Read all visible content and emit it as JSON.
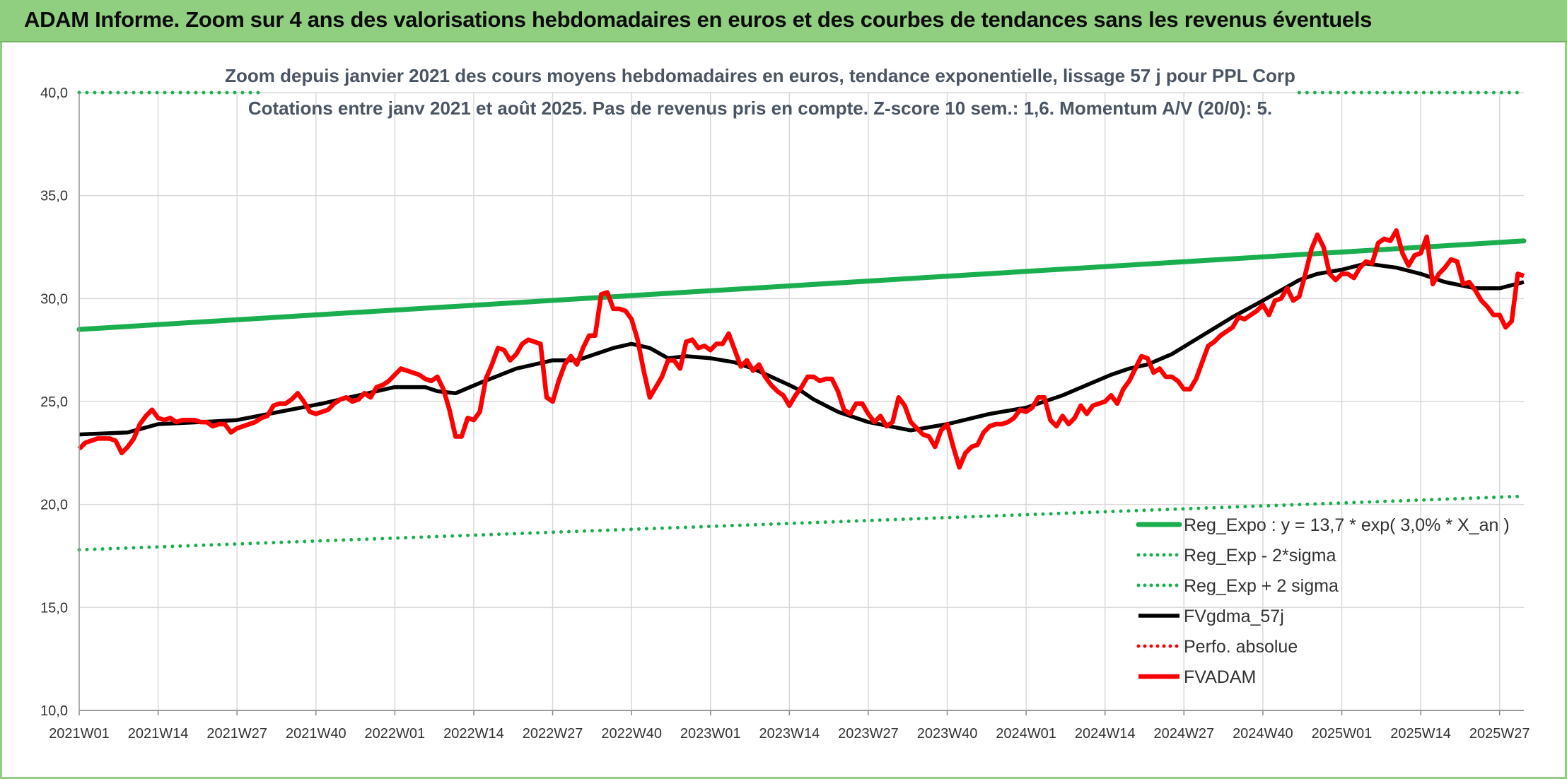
{
  "header": {
    "title": "ADAM Informe. Zoom sur 4 ans des valorisations hebdomadaires en euros et des courbes de tendances sans les revenus éventuels"
  },
  "colors": {
    "banner": "#8fcf7f",
    "green": "#1aae4f",
    "black": "#000000",
    "red": "#ff0000",
    "grid": "#d9d9d9"
  },
  "chart_data": {
    "type": "line",
    "title": "Zoom depuis janvier 2021 des cours moyens hebdomadaires en euros, tendance exponentielle, lissage 57 j pour PPL Corp",
    "subtitle": "Cotations entre janv 2021 et août 2025. Pas de revenus pris en compte. Z-score 10 sem.: 1,6. Momentum A/V (20/0): 5.",
    "xlabel": "",
    "ylabel": "",
    "ylim": [
      10,
      40
    ],
    "y_ticks": [
      "10,0",
      "15,0",
      "20,0",
      "25,0",
      "30,0",
      "35,0",
      "40,0"
    ],
    "x_ticks": [
      "2021W01",
      "2021W14",
      "2021W27",
      "2021W40",
      "2022W01",
      "2022W14",
      "2022W27",
      "2022W40",
      "2023W01",
      "2023W14",
      "2023W27",
      "2023W40",
      "2024W01",
      "2024W14",
      "2024W27",
      "2024W40",
      "2025W01",
      "2025W14",
      "2025W27"
    ],
    "x_range_weeks": [
      0,
      238
    ],
    "grid": true,
    "legend_position": "bottom-right",
    "series": [
      {
        "name": "Reg_Expo : y = 13,7 * exp( 3,0% *  X_an )",
        "style": "solid",
        "color": "#1aae4f",
        "x": [
          0,
          238
        ],
        "values": [
          28.5,
          32.8
        ]
      },
      {
        "name": "Reg_Exp - 2*sigma",
        "style": "dotted",
        "color": "#1aae4f",
        "x": [
          0,
          238
        ],
        "values": [
          17.8,
          20.4
        ]
      },
      {
        "name": "Reg_Exp + 2 sigma",
        "style": "dotted",
        "color": "#1aae4f",
        "x": [
          0,
          30,
          201,
          238
        ],
        "values": [
          40.0,
          40.0,
          40.0,
          40.0
        ],
        "gap": [
          30,
          201
        ]
      },
      {
        "name": "FVgdma_57j",
        "style": "solid",
        "color": "#000000",
        "x": [
          0,
          8,
          13,
          20,
          26,
          33,
          40,
          46,
          52,
          57,
          59,
          62,
          66,
          72,
          78,
          82,
          85,
          88,
          91,
          94,
          97,
          100,
          104,
          108,
          111,
          114,
          117,
          119,
          121,
          123,
          125,
          127,
          130,
          137,
          143,
          150,
          156,
          162,
          166,
          170,
          173,
          176,
          180,
          185,
          190,
          195,
          201,
          204,
          208,
          212,
          217,
          221,
          225,
          230,
          234,
          238
        ],
        "values": [
          23.4,
          23.5,
          23.9,
          24.0,
          24.1,
          24.5,
          24.9,
          25.3,
          25.7,
          25.7,
          25.5,
          25.4,
          25.9,
          26.6,
          27.0,
          27.0,
          27.3,
          27.6,
          27.8,
          27.6,
          27.1,
          27.2,
          27.1,
          26.9,
          26.6,
          26.2,
          25.8,
          25.5,
          25.1,
          24.8,
          24.5,
          24.3,
          24.0,
          23.6,
          23.9,
          24.4,
          24.7,
          25.3,
          25.8,
          26.3,
          26.6,
          26.8,
          27.3,
          28.2,
          29.1,
          29.9,
          30.9,
          31.2,
          31.4,
          31.7,
          31.5,
          31.2,
          30.8,
          30.5,
          30.5,
          30.8
        ]
      },
      {
        "name": "Perfo. absolue",
        "style": "dotted",
        "color": "#ff0000",
        "x": [],
        "values": []
      },
      {
        "name": "FVADAM",
        "style": "solid",
        "color": "#ff0000",
        "x": [
          0,
          1,
          2,
          3,
          4,
          5,
          6,
          7,
          8,
          9,
          10,
          11,
          12,
          13,
          14,
          15,
          16,
          17,
          18,
          19,
          20,
          21,
          22,
          23,
          24,
          25,
          26,
          27,
          28,
          29,
          30,
          31,
          32,
          33,
          34,
          35,
          36,
          37,
          38,
          39,
          40,
          41,
          42,
          43,
          44,
          45,
          46,
          47,
          48,
          49,
          50,
          51,
          52,
          53,
          54,
          55,
          56,
          57,
          58,
          59,
          60,
          61,
          62,
          63,
          64,
          65,
          66,
          67,
          68,
          69,
          70,
          71,
          72,
          73,
          74,
          75,
          76,
          77,
          78,
          79,
          80,
          81,
          82,
          83,
          84,
          85,
          86,
          87,
          88,
          89,
          90,
          91,
          92,
          93,
          94,
          95,
          96,
          97,
          98,
          99,
          100,
          101,
          102,
          103,
          104,
          105,
          106,
          107,
          108,
          109,
          110,
          111,
          112,
          113,
          114,
          115,
          116,
          117,
          118,
          119,
          120,
          121,
          122,
          123,
          124,
          125,
          126,
          127,
          128,
          129,
          130,
          131,
          132,
          133,
          134,
          135,
          136,
          137,
          138,
          139,
          140,
          141,
          142,
          143,
          144,
          145,
          146,
          147,
          148,
          149,
          150,
          151,
          152,
          153,
          154,
          155,
          156,
          157,
          158,
          159,
          160,
          161,
          162,
          163,
          164,
          165,
          166,
          167,
          168,
          169,
          170,
          171,
          172,
          173,
          174,
          175,
          176,
          177,
          178,
          179,
          180,
          181,
          182,
          183,
          184,
          185,
          186,
          187,
          188,
          189,
          190,
          191,
          192,
          193,
          194,
          195,
          196,
          197,
          198,
          199,
          200,
          201,
          202,
          203,
          204,
          205,
          206,
          207,
          208,
          209,
          210,
          211,
          212,
          213,
          214,
          215,
          216,
          217,
          218,
          219,
          220,
          221,
          222,
          223,
          224,
          225,
          226,
          227,
          228,
          229,
          230,
          231,
          232,
          233,
          234,
          235,
          236,
          237,
          238
        ],
        "values": [
          22.7,
          23.0,
          23.1,
          23.2,
          23.2,
          23.2,
          23.1,
          22.5,
          22.8,
          23.2,
          23.9,
          24.3,
          24.6,
          24.2,
          24.1,
          24.2,
          24.0,
          24.1,
          24.1,
          24.1,
          24.0,
          24.0,
          23.8,
          23.9,
          23.9,
          23.5,
          23.7,
          23.8,
          23.9,
          24.0,
          24.2,
          24.3,
          24.8,
          24.9,
          24.9,
          25.1,
          25.4,
          25.0,
          24.5,
          24.4,
          24.5,
          24.6,
          24.9,
          25.1,
          25.2,
          25.0,
          25.1,
          25.4,
          25.2,
          25.7,
          25.8,
          26.0,
          26.3,
          26.6,
          26.5,
          26.4,
          26.3,
          26.1,
          26.0,
          26.2,
          25.6,
          24.6,
          23.3,
          23.3,
          24.2,
          24.1,
          24.5,
          26.1,
          26.8,
          27.6,
          27.5,
          27.0,
          27.3,
          27.8,
          28.0,
          27.9,
          27.8,
          25.2,
          25.0,
          26.0,
          26.8,
          27.2,
          26.8,
          27.6,
          28.2,
          28.2,
          30.2,
          30.3,
          29.5,
          29.5,
          29.4,
          29.0,
          28.0,
          26.5,
          25.2,
          25.7,
          26.2,
          27.0,
          27.0,
          26.6,
          27.9,
          28.0,
          27.6,
          27.7,
          27.5,
          27.8,
          27.8,
          28.3,
          27.5,
          26.7,
          27.0,
          26.5,
          26.8,
          26.2,
          25.8,
          25.5,
          25.3,
          24.8,
          25.3,
          25.7,
          26.2,
          26.2,
          26.0,
          26.1,
          26.1,
          25.5,
          24.6,
          24.4,
          24.9,
          24.9,
          24.4,
          24.0,
          24.3,
          23.8,
          24.0,
          25.2,
          24.8,
          24.0,
          23.7,
          23.4,
          23.3,
          22.8,
          23.6,
          23.9,
          22.8,
          21.8,
          22.5,
          22.8,
          22.9,
          23.5,
          23.8,
          23.9,
          23.9,
          24.0,
          24.2,
          24.6,
          24.5,
          24.7,
          25.2,
          25.2,
          24.1,
          23.8,
          24.3,
          23.9,
          24.2,
          24.8,
          24.4,
          24.8,
          24.9,
          25.0,
          25.3,
          24.9,
          25.6,
          26.0,
          26.6,
          27.2,
          27.1,
          26.4,
          26.6,
          26.2,
          26.2,
          26.0,
          25.6,
          25.6,
          26.1,
          26.9,
          27.7,
          27.9,
          28.2,
          28.4,
          28.6,
          29.1,
          29.0,
          29.2,
          29.4,
          29.7,
          29.2,
          29.9,
          30.0,
          30.5,
          29.9,
          30.1,
          31.2,
          32.4,
          33.1,
          32.5,
          31.2,
          30.9,
          31.2,
          31.2,
          31.0,
          31.5,
          31.8,
          31.7,
          32.7,
          32.9,
          32.8,
          33.3,
          32.2,
          31.6,
          32.1,
          32.2,
          33.0,
          30.7,
          31.2,
          31.5,
          31.9,
          31.8,
          30.7,
          30.8,
          30.4,
          29.9,
          29.6,
          29.2,
          29.2,
          28.6,
          28.9,
          31.2,
          31.1
        ]
      }
    ]
  }
}
